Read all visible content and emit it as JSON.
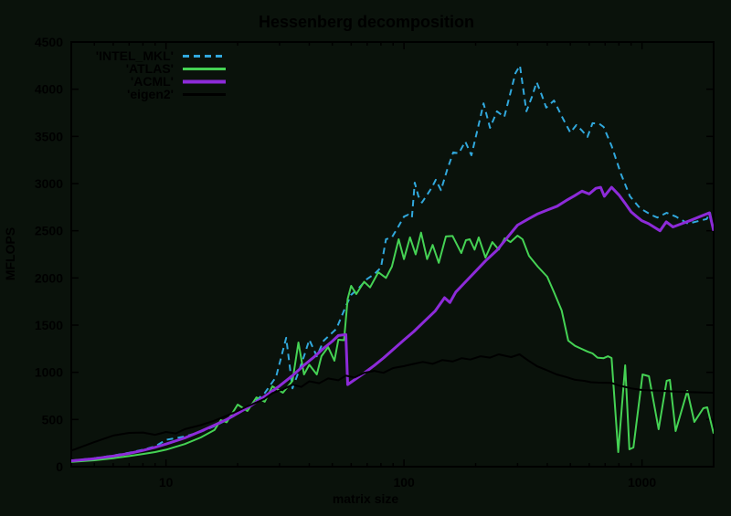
{
  "chart_data": {
    "type": "line",
    "title": "Hessenberg decomposition",
    "xlabel": "matrix size",
    "ylabel": "MFLOPS",
    "x_scale": "log",
    "xlim": [
      4,
      2000
    ],
    "ylim": [
      0,
      4500
    ],
    "x_major_ticks": [
      10,
      100,
      1000
    ],
    "x_major_tick_labels": [
      "10",
      "100",
      "1000"
    ],
    "y_tick_step": 500,
    "y_tick_labels": [
      "0",
      "500",
      "1000",
      "1500",
      "2000",
      "2500",
      "3000",
      "3500",
      "4000",
      "4500"
    ],
    "grid": false,
    "legend_position": "top-left-inside",
    "background_color": "#0a120b",
    "foreground_color": "#000000",
    "series": [
      {
        "name": "'INTEL_MKL'",
        "color": "#31a8dc",
        "style": "dashed",
        "width": 2,
        "points": [
          [
            4,
            65
          ],
          [
            5,
            90
          ],
          [
            6,
            118
          ],
          [
            7,
            148
          ],
          [
            8,
            180
          ],
          [
            9,
            215
          ],
          [
            10,
            285
          ],
          [
            12,
            320
          ],
          [
            14,
            370
          ],
          [
            16,
            430
          ],
          [
            18,
            495
          ],
          [
            20,
            560
          ],
          [
            23,
            665
          ],
          [
            26,
            780
          ],
          [
            29,
            950
          ],
          [
            32,
            1365
          ],
          [
            34,
            830
          ],
          [
            36,
            1000
          ],
          [
            38,
            1170
          ],
          [
            40,
            1345
          ],
          [
            43,
            1170
          ],
          [
            46,
            1335
          ],
          [
            52,
            1460
          ],
          [
            57,
            1700
          ],
          [
            60,
            1820
          ],
          [
            65,
            1900
          ],
          [
            70,
            1990
          ],
          [
            75,
            2040
          ],
          [
            80,
            2110
          ],
          [
            84,
            2410
          ],
          [
            89,
            2430
          ],
          [
            95,
            2550
          ],
          [
            100,
            2650
          ],
          [
            104,
            2670
          ],
          [
            108,
            2640
          ],
          [
            111,
            3010
          ],
          [
            115,
            2865
          ],
          [
            119,
            2800
          ],
          [
            125,
            2880
          ],
          [
            131,
            2960
          ],
          [
            136,
            3040
          ],
          [
            143,
            2930
          ],
          [
            152,
            3150
          ],
          [
            161,
            3330
          ],
          [
            170,
            3320
          ],
          [
            181,
            3445
          ],
          [
            192,
            3300
          ],
          [
            205,
            3600
          ],
          [
            216,
            3850
          ],
          [
            230,
            3590
          ],
          [
            246,
            3765
          ],
          [
            264,
            3705
          ],
          [
            280,
            3960
          ],
          [
            294,
            4170
          ],
          [
            307,
            4250
          ],
          [
            327,
            3765
          ],
          [
            345,
            3920
          ],
          [
            361,
            4075
          ],
          [
            379,
            3940
          ],
          [
            396,
            3805
          ],
          [
            427,
            3880
          ],
          [
            465,
            3690
          ],
          [
            500,
            3540
          ],
          [
            530,
            3620
          ],
          [
            560,
            3560
          ],
          [
            590,
            3495
          ],
          [
            620,
            3640
          ],
          [
            660,
            3635
          ],
          [
            690,
            3600
          ],
          [
            745,
            3400
          ],
          [
            815,
            3105
          ],
          [
            890,
            2865
          ],
          [
            980,
            2740
          ],
          [
            1090,
            2670
          ],
          [
            1160,
            2640
          ],
          [
            1270,
            2690
          ],
          [
            1390,
            2650
          ],
          [
            1560,
            2575
          ],
          [
            1710,
            2600
          ],
          [
            1870,
            2625
          ],
          [
            1930,
            2690
          ],
          [
            2000,
            2500
          ]
        ]
      },
      {
        "name": "'ATLAS'",
        "color": "#45d254",
        "style": "solid",
        "width": 2,
        "points": [
          [
            4,
            50
          ],
          [
            5,
            68
          ],
          [
            6,
            90
          ],
          [
            7,
            112
          ],
          [
            8,
            135
          ],
          [
            9,
            155
          ],
          [
            10,
            180
          ],
          [
            12,
            240
          ],
          [
            14,
            310
          ],
          [
            16,
            390
          ],
          [
            17,
            494
          ],
          [
            18,
            470
          ],
          [
            20,
            658
          ],
          [
            22,
            590
          ],
          [
            24,
            735
          ],
          [
            26,
            688
          ],
          [
            28,
            852
          ],
          [
            31,
            784
          ],
          [
            34,
            910
          ],
          [
            36,
            1316
          ],
          [
            38,
            977
          ],
          [
            40,
            1080
          ],
          [
            43,
            977
          ],
          [
            45,
            1171
          ],
          [
            48,
            1268
          ],
          [
            51,
            1123
          ],
          [
            53,
            1345
          ],
          [
            56,
            1340
          ],
          [
            58,
            1780
          ],
          [
            60,
            1916
          ],
          [
            63,
            1829
          ],
          [
            68,
            1960
          ],
          [
            72,
            1900
          ],
          [
            78,
            2060
          ],
          [
            84,
            2000
          ],
          [
            89,
            2120
          ],
          [
            95,
            2410
          ],
          [
            100,
            2200
          ],
          [
            106,
            2430
          ],
          [
            112,
            2250
          ],
          [
            118,
            2480
          ],
          [
            125,
            2200
          ],
          [
            132,
            2350
          ],
          [
            140,
            2160
          ],
          [
            150,
            2440
          ],
          [
            160,
            2445
          ],
          [
            174,
            2264
          ],
          [
            182,
            2400
          ],
          [
            189,
            2410
          ],
          [
            198,
            2300
          ],
          [
            206,
            2429
          ],
          [
            220,
            2216
          ],
          [
            235,
            2380
          ],
          [
            250,
            2300
          ],
          [
            265,
            2420
          ],
          [
            280,
            2380
          ],
          [
            300,
            2448
          ],
          [
            315,
            2410
          ],
          [
            335,
            2235
          ],
          [
            365,
            2119
          ],
          [
            400,
            2013
          ],
          [
            427,
            1848
          ],
          [
            460,
            1655
          ],
          [
            490,
            1335
          ],
          [
            523,
            1280
          ],
          [
            556,
            1249
          ],
          [
            590,
            1220
          ],
          [
            620,
            1200
          ],
          [
            650,
            1155
          ],
          [
            690,
            1150
          ],
          [
            720,
            1170
          ],
          [
            745,
            1152
          ],
          [
            795,
            155
          ],
          [
            850,
            1074
          ],
          [
            885,
            184
          ],
          [
            920,
            203
          ],
          [
            1005,
            977
          ],
          [
            1070,
            958
          ],
          [
            1175,
            397
          ],
          [
            1270,
            910
          ],
          [
            1310,
            920
          ],
          [
            1385,
            377
          ],
          [
            1550,
            803
          ],
          [
            1660,
            474
          ],
          [
            1810,
            619
          ],
          [
            1880,
            629
          ],
          [
            2000,
            350
          ]
        ]
      },
      {
        "name": "'ACML'",
        "color": "#8d2bd9",
        "style": "solid",
        "width": 3,
        "points": [
          [
            4,
            62
          ],
          [
            5,
            85
          ],
          [
            6,
            112
          ],
          [
            7,
            140
          ],
          [
            8,
            172
          ],
          [
            9,
            205
          ],
          [
            10,
            240
          ],
          [
            12,
            305
          ],
          [
            14,
            375
          ],
          [
            16,
            440
          ],
          [
            18,
            500
          ],
          [
            20,
            565
          ],
          [
            23,
            655
          ],
          [
            26,
            745
          ],
          [
            30,
            855
          ],
          [
            34,
            965
          ],
          [
            38,
            1075
          ],
          [
            42,
            1165
          ],
          [
            46,
            1255
          ],
          [
            50,
            1330
          ],
          [
            53,
            1390
          ],
          [
            57,
            1400
          ],
          [
            58,
            870
          ],
          [
            62,
            920
          ],
          [
            68,
            992
          ],
          [
            75,
            1072
          ],
          [
            82,
            1152
          ],
          [
            90,
            1242
          ],
          [
            100,
            1342
          ],
          [
            110,
            1432
          ],
          [
            122,
            1542
          ],
          [
            135,
            1648
          ],
          [
            148,
            1790
          ],
          [
            156,
            1740
          ],
          [
            165,
            1850
          ],
          [
            180,
            1950
          ],
          [
            200,
            2070
          ],
          [
            220,
            2180
          ],
          [
            245,
            2290
          ],
          [
            270,
            2420
          ],
          [
            300,
            2560
          ],
          [
            330,
            2620
          ],
          [
            365,
            2680
          ],
          [
            401,
            2720
          ],
          [
            440,
            2760
          ],
          [
            480,
            2820
          ],
          [
            520,
            2870
          ],
          [
            560,
            2920
          ],
          [
            600,
            2890
          ],
          [
            640,
            2950
          ],
          [
            670,
            2960
          ],
          [
            695,
            2865
          ],
          [
            745,
            2960
          ],
          [
            800,
            2880
          ],
          [
            850,
            2790
          ],
          [
            900,
            2700
          ],
          [
            950,
            2650
          ],
          [
            1000,
            2605
          ],
          [
            1065,
            2575
          ],
          [
            1190,
            2500
          ],
          [
            1265,
            2595
          ],
          [
            1350,
            2540
          ],
          [
            1470,
            2575
          ],
          [
            1600,
            2610
          ],
          [
            1750,
            2650
          ],
          [
            1920,
            2690
          ],
          [
            2000,
            2500
          ]
        ]
      },
      {
        "name": "'eigen2'",
        "color": "#000000",
        "style": "solid",
        "width": 2,
        "points": [
          [
            4,
            170
          ],
          [
            5,
            260
          ],
          [
            6,
            330
          ],
          [
            7,
            358
          ],
          [
            8,
            362
          ],
          [
            9,
            338
          ],
          [
            10,
            368
          ],
          [
            11,
            352
          ],
          [
            12,
            398
          ],
          [
            14,
            440
          ],
          [
            16,
            488
          ],
          [
            18,
            540
          ],
          [
            20,
            590
          ],
          [
            22,
            640
          ],
          [
            24,
            680
          ],
          [
            26,
            720
          ],
          [
            28,
            780
          ],
          [
            31,
            820
          ],
          [
            34,
            870
          ],
          [
            37,
            845
          ],
          [
            40,
            905
          ],
          [
            44,
            885
          ],
          [
            48,
            935
          ],
          [
            53,
            915
          ],
          [
            57,
            965
          ],
          [
            62,
            945
          ],
          [
            68,
            995
          ],
          [
            75,
            1015
          ],
          [
            82,
            995
          ],
          [
            90,
            1045
          ],
          [
            100,
            1065
          ],
          [
            110,
            1090
          ],
          [
            120,
            1110
          ],
          [
            132,
            1090
          ],
          [
            145,
            1130
          ],
          [
            160,
            1115
          ],
          [
            175,
            1150
          ],
          [
            190,
            1135
          ],
          [
            210,
            1170
          ],
          [
            230,
            1155
          ],
          [
            250,
            1190
          ],
          [
            282,
            1161
          ],
          [
            306,
            1190
          ],
          [
            333,
            1125
          ],
          [
            362,
            1065
          ],
          [
            400,
            1020
          ],
          [
            438,
            977
          ],
          [
            480,
            950
          ],
          [
            524,
            920
          ],
          [
            571,
            910
          ],
          [
            610,
            895
          ],
          [
            660,
            890
          ],
          [
            742,
            888
          ],
          [
            800,
            860
          ],
          [
            900,
            830
          ],
          [
            1000,
            813
          ],
          [
            1100,
            808
          ],
          [
            1233,
            803
          ],
          [
            1400,
            795
          ],
          [
            1600,
            790
          ],
          [
            1800,
            787
          ],
          [
            2000,
            784
          ]
        ]
      }
    ]
  }
}
